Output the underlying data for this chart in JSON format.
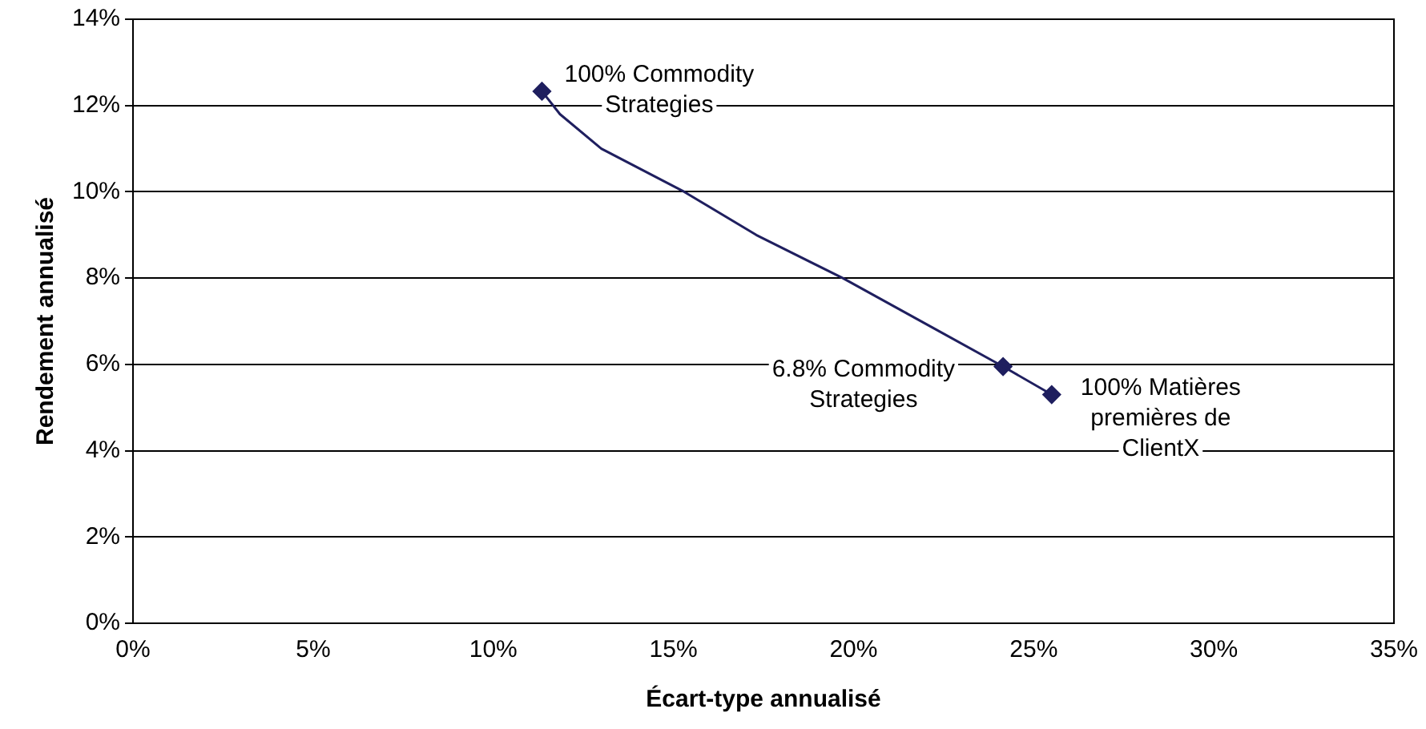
{
  "chart_data": {
    "type": "line",
    "xlabel": "Écart-type annualisé",
    "ylabel": "Rendement annualisé",
    "xlim": [
      0,
      35
    ],
    "xticks": [
      {
        "value": 0,
        "label": "0%"
      },
      {
        "value": 5,
        "label": "5%"
      },
      {
        "value": 10,
        "label": "10%"
      },
      {
        "value": 15,
        "label": "15%"
      },
      {
        "value": 20,
        "label": "20%"
      },
      {
        "value": 25,
        "label": "25%"
      },
      {
        "value": 30,
        "label": "30%"
      },
      {
        "value": 35,
        "label": "35%"
      }
    ],
    "ylim": [
      0,
      14
    ],
    "yticks": [
      {
        "value": 0,
        "label": "0%"
      },
      {
        "value": 2,
        "label": "2%"
      },
      {
        "value": 4,
        "label": "4%"
      },
      {
        "value": 6,
        "label": "6%"
      },
      {
        "value": 8,
        "label": "8%"
      },
      {
        "value": 10,
        "label": "10%"
      },
      {
        "value": 12,
        "label": "12%"
      },
      {
        "value": 14,
        "label": "14%"
      }
    ],
    "grid": "y",
    "legend": false,
    "series": [
      {
        "type": "line",
        "color": "#1f1f5f",
        "marker": "none",
        "x": [
          11.35,
          11.85,
          13.0,
          15.3,
          17.3,
          19.7,
          22.2,
          24.15,
          25.5
        ],
        "values": [
          12.33,
          11.8,
          11.0,
          10.0,
          9.0,
          8.0,
          6.85,
          5.95,
          5.3
        ]
      },
      {
        "type": "scatter",
        "color": "#1f1f5f",
        "marker": "diamond",
        "x": [
          11.35,
          24.15,
          25.5
        ],
        "values": [
          12.33,
          5.95,
          5.3
        ]
      }
    ],
    "annotations": [
      {
        "text": "100% Commodity\nStrategies",
        "x": 11.35,
        "y": 12.33
      },
      {
        "text": "6.8% Commodity\nStrategies",
        "x": 24.15,
        "y": 5.95
      },
      {
        "text": "100% Matières\npremières de\nClientX",
        "x": 25.5,
        "y": 5.3
      }
    ]
  }
}
